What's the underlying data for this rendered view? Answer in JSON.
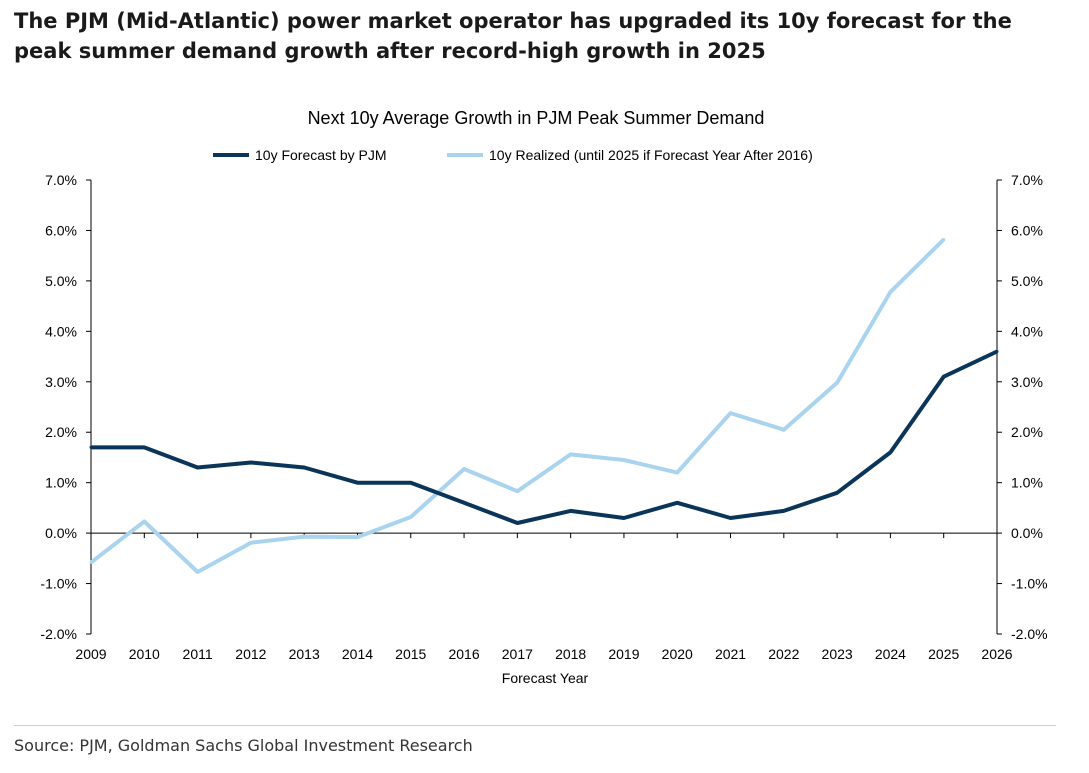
{
  "headline": "The PJM (Mid-Atlantic) power market operator has upgraded its 10y forecast for the peak summer demand growth after record-high growth in 2025",
  "source": "Source: PJM, Goldman Sachs Global Investment Research",
  "chart_data": {
    "type": "line",
    "title": "Next 10y Average Growth in PJM Peak Summer Demand",
    "xlabel": "Forecast Year",
    "ylabel": "",
    "categories": [
      "2009",
      "2010",
      "2011",
      "2012",
      "2013",
      "2014",
      "2015",
      "2016",
      "2017",
      "2018",
      "2019",
      "2020",
      "2021",
      "2022",
      "2023",
      "2024",
      "2025",
      "2026"
    ],
    "ylim": [
      -2.0,
      7.0
    ],
    "yticks": [
      -2.0,
      -1.0,
      0.0,
      1.0,
      2.0,
      3.0,
      4.0,
      5.0,
      6.0,
      7.0
    ],
    "ytick_labels": [
      "-2.0%",
      "-1.0%",
      "0.0%",
      "1.0%",
      "2.0%",
      "3.0%",
      "4.0%",
      "5.0%",
      "6.0%",
      "7.0%"
    ],
    "grid": false,
    "legend_position": "top-center",
    "series": [
      {
        "name": "10y Forecast by PJM",
        "color": "#0b3558",
        "values": [
          1.7,
          1.7,
          1.3,
          1.4,
          1.3,
          1.0,
          1.0,
          0.6,
          0.2,
          0.44,
          0.3,
          0.6,
          0.3,
          0.44,
          0.8,
          1.6,
          3.1,
          3.6
        ]
      },
      {
        "name": "10y Realized (until 2025 if Forecast Year After 2016)",
        "color": "#a9d3ee",
        "values": [
          -0.58,
          0.23,
          -0.77,
          -0.19,
          -0.07,
          -0.08,
          0.32,
          1.27,
          0.83,
          1.56,
          1.45,
          1.2,
          2.38,
          2.05,
          2.98,
          4.78,
          5.82,
          null
        ]
      }
    ]
  }
}
